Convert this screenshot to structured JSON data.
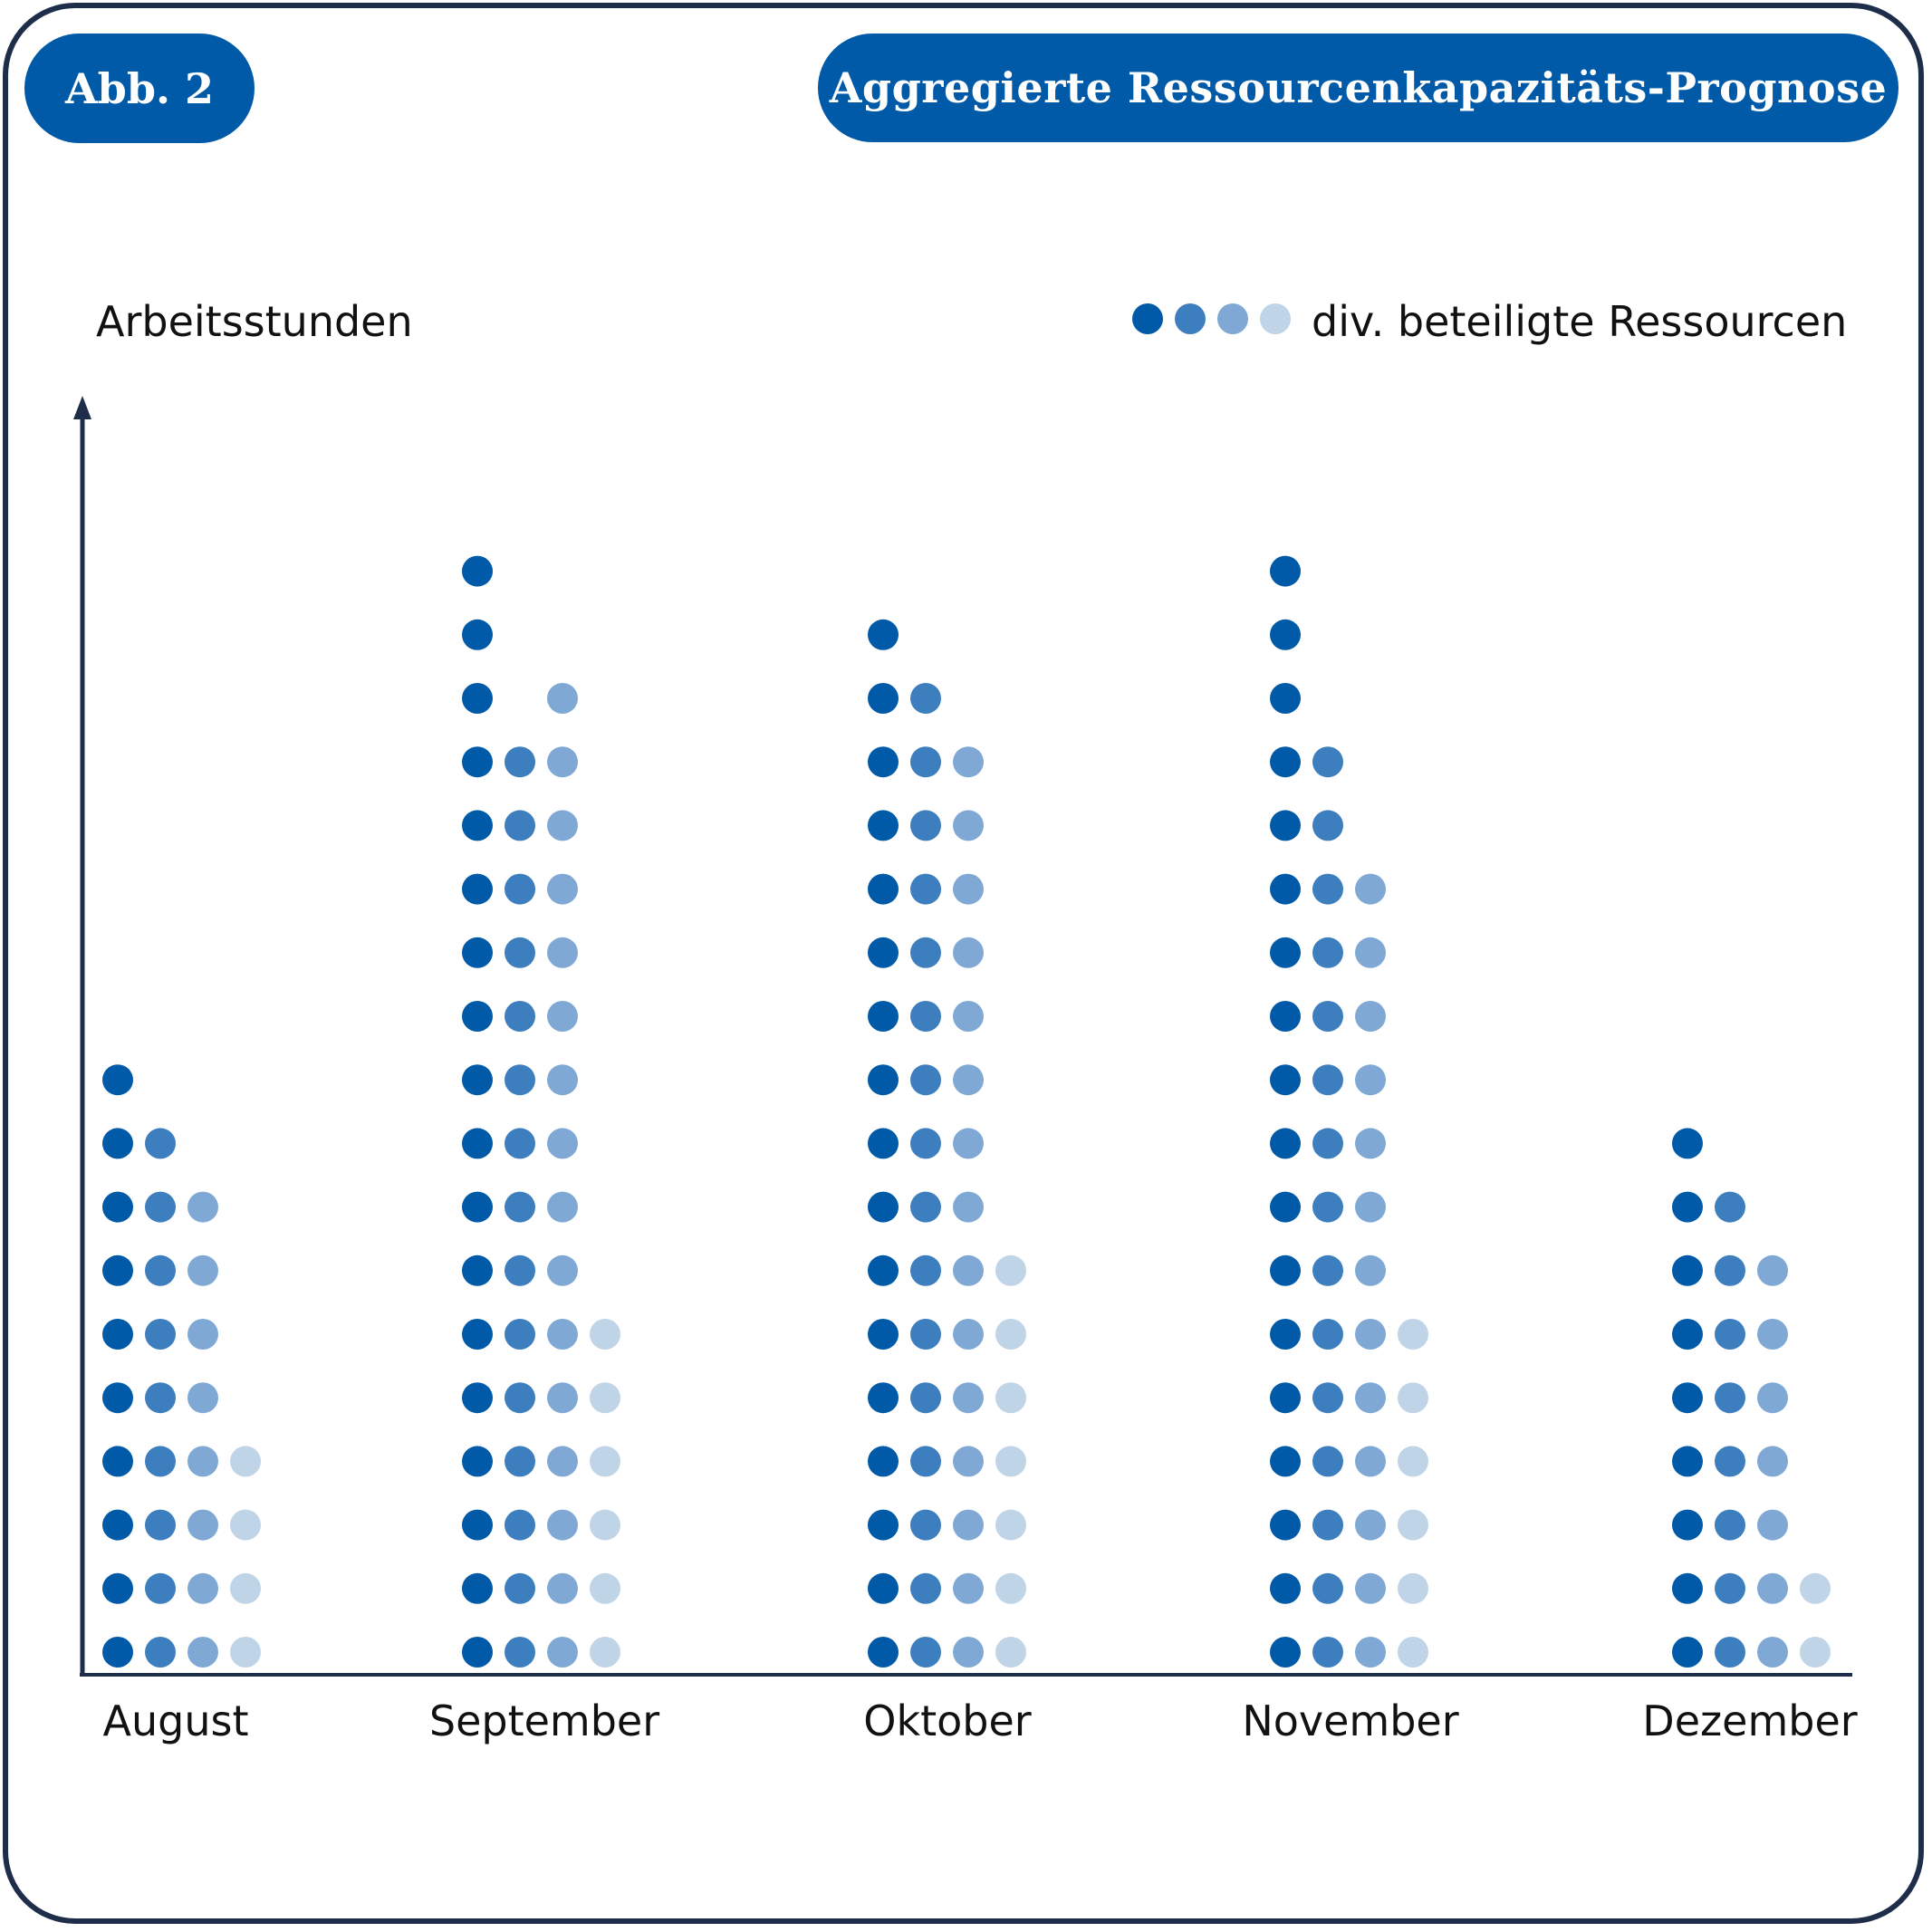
{
  "header": {
    "figure_label": "Abb. 2",
    "title": "Aggregierte Ressourcenkapazitäts-Prognose"
  },
  "colors": {
    "brand": "#005aa8",
    "frame": "#1e2d4a",
    "resource_1": "#005aa8",
    "resource_2": "#3d7fbe",
    "resource_3": "#7fa9d4",
    "resource_4": "#c0d4e8"
  },
  "chart_data": {
    "type": "bar",
    "subtype": "dot-plot (each dot = one unit of working hours)",
    "title": "Aggregierte Ressourcenkapazitäts-Prognose",
    "ylabel": "Arbeitsstunden",
    "xlabel": "",
    "legend": {
      "label": "div. beteiligte Ressourcen",
      "placement": "top-right"
    },
    "categories": [
      "August",
      "September",
      "Oktober",
      "November",
      "Dezember"
    ],
    "series": [
      {
        "values": [
          10,
          18,
          17,
          18,
          9
        ]
      },
      {
        "values": [
          9,
          15,
          16,
          15,
          8
        ]
      },
      {
        "values": [
          8,
          16,
          15,
          13,
          7
        ]
      },
      {
        "values": [
          4,
          6,
          7,
          6,
          2
        ]
      }
    ],
    "y_ticks_shown": false,
    "grid": false
  }
}
